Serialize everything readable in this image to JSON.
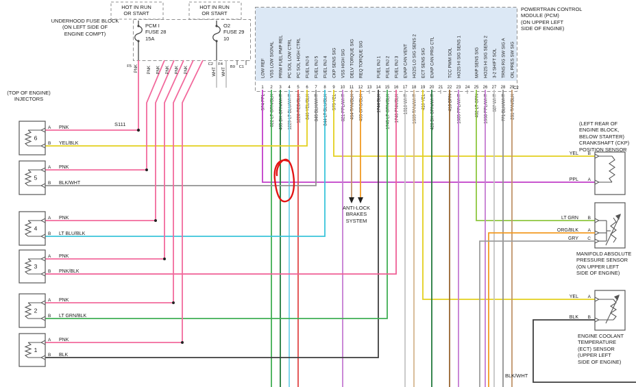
{
  "pcm": {
    "title": "POWERTRAIN CONTROL\nMODULE (PCM)\n(ON UPPER LEFT\nSIDE OF ENGINE)",
    "connector": "C2",
    "pins": [
      {
        "num": "1",
        "label": "LOW REF",
        "wire": "574 PPL",
        "color": "ppl"
      },
      {
        "num": "2",
        "label": "VSS LOW SIGNAL",
        "wire": "822 LT GRN/BLK",
        "color": "lt_grn_blk"
      },
      {
        "num": "3",
        "label": "PRIM FUEL PMP REL",
        "wire": "465 DK GRN/WHT",
        "color": "dk_grn_wht"
      },
      {
        "num": "4",
        "label": "PC SOL LOW CTRL",
        "wire": "1229 LT BLU/WHT",
        "color": "lt_blu_wht"
      },
      {
        "num": "5",
        "label": "PC SOL HIGH CTRL",
        "wire": "1228 RED/BLK",
        "color": "red_blk"
      },
      {
        "num": "6",
        "label": "FUEL INJ 6",
        "wire": "846 YEL/BLK",
        "color": "yel"
      },
      {
        "num": "7",
        "label": "FUEL INJ 5",
        "wire": "845 BLK/WHT",
        "color": "blk_wht"
      },
      {
        "num": "8",
        "label": "FUEL INJ 4",
        "wire": "844 LT BLU/BLK",
        "color": "lt_blu_blk"
      },
      {
        "num": "9",
        "label": "CKP SENS SIG",
        "wire": "573 YEL",
        "color": "yel"
      },
      {
        "num": "10",
        "label": "VSS HIGH SIG",
        "wire": "821 PPL/WHT",
        "color": "ppl_wht"
      },
      {
        "num": "11",
        "label": "DELV TORQUE SIG",
        "wire": "464 TAN/BLK",
        "color": "tan_blk"
      },
      {
        "num": "12",
        "label": "REQ TORQUE SIG",
        "wire": "463 ORG/BLK",
        "color": "org_blk"
      },
      {
        "num": "13",
        "label": "",
        "wire": "",
        "color": null
      },
      {
        "num": "14",
        "label": "FUEL INJ 1",
        "wire": "1744 BLK",
        "color": "blk"
      },
      {
        "num": "15",
        "label": "FUEL INJ 2",
        "wire": "1745 LT GRN/BLK",
        "color": "lt_grn_blk"
      },
      {
        "num": "16",
        "label": "FUEL INJ 3",
        "wire": "1746 PNK/BLK",
        "color": "pnk_blk"
      },
      {
        "num": "17",
        "label": "EVAP CAN VENT",
        "wire": "1310 WHT",
        "color": "wht"
      },
      {
        "num": "18",
        "label": "HO2S LO SIG SENS 2",
        "wire": "1669 TAN/WHT",
        "color": "tan_wht"
      },
      {
        "num": "19",
        "label": "ECT SENS SIG",
        "wire": "410 YEL",
        "color": "yel"
      },
      {
        "num": "20",
        "label": "EVAP CAN PRG CTL",
        "wire": "428 DK GRN/WHT",
        "color": "dk_grn_wht"
      },
      {
        "num": "21",
        "label": "",
        "wire": "",
        "color": null
      },
      {
        "num": "22",
        "label": "TCC PWM SOL",
        "wire": "418 BRN",
        "color": "brn"
      },
      {
        "num": "23",
        "label": "HO2S HI SIG SENS 1",
        "wire": "1685 PPL/WHT",
        "color": "ppl_wht"
      },
      {
        "num": "24",
        "label": "",
        "wire": "",
        "color": null
      },
      {
        "num": "25",
        "label": "MAP SENS SIG",
        "wire": "432 LT GRN",
        "color": "lt_grn"
      },
      {
        "num": "26",
        "label": "HO2S HI SIG SENS 2",
        "wire": "1668 PPL/WHT",
        "color": "ppl_wht"
      },
      {
        "num": "27",
        "label": "3-2 SHIFT SOL",
        "wire": "687 WHT",
        "color": "wht"
      },
      {
        "num": "28",
        "label": "TRNS RG SW SIG A",
        "wire": "771 BLK/WHT",
        "color": "blk_wht"
      },
      {
        "num": "29",
        "label": "OIL PRES SW SIG",
        "wire": "231 TAN/BLK",
        "color": "tan_blk"
      }
    ]
  },
  "fuse_block": {
    "label": "UNDERHOOD FUSE BLOCK\n(ON LEFT SIDE OF\nENGINE COMPT)",
    "hot_left": "HOT IN RUN\nOR START",
    "hot_right": "HOT IN RUN\nOR START",
    "fuse28_label": "PCM I\nFUSE 28\n15A",
    "fuse29_label": "O2\nFUSE 29\n10",
    "output_labels": [
      "F5",
      "C2",
      "F4",
      "B9",
      "C1"
    ],
    "feed_wire_color": "PNK",
    "o2_wire_color": "WHT"
  },
  "injectors": {
    "header": "(TOP OF ENGINE)\nINJECTORS",
    "terminal_a": "A",
    "terminal_b": "B",
    "items": [
      {
        "num": "6",
        "wire_a": "PNK",
        "wire_b": "YEL/BLK",
        "color_b": "yel"
      },
      {
        "num": "5",
        "wire_a": "PNK",
        "wire_b": "BLK/WHT",
        "color_b": "blk_wht"
      },
      {
        "num": "4",
        "wire_a": "PNK",
        "wire_b": "LT BLU/BLK",
        "color_b": "lt_blu_blk"
      },
      {
        "num": "3",
        "wire_a": "PNK",
        "wire_b": "PNK/BLK",
        "color_b": "pnk_blk"
      },
      {
        "num": "2",
        "wire_a": "PNK",
        "wire_b": "LT GRN/BLK",
        "color_b": "lt_grn_blk"
      },
      {
        "num": "1",
        "wire_a": "PNK",
        "wire_b": "BLK",
        "color_b": "blk"
      }
    ]
  },
  "sensors": {
    "ckp": {
      "title": "(LEFT REAR OF\nENGINE BLOCK,\nBELOW STARTER)\nCRANKSHAFT (CKP)\nPOSITION SENSOR",
      "terminals": [
        {
          "letter": "B",
          "wire": "YEL",
          "color": "yel"
        },
        {
          "letter": "A",
          "wire": "PPL",
          "color": "ppl"
        }
      ]
    },
    "map": {
      "title": "MANIFOLD ABSOLUTE\nPRESSURE SENSOR\n(ON UPPER LEFT\nSIDE OF ENGINE)",
      "terminals": [
        {
          "letter": "B",
          "wire": "LT GRN",
          "color": "lt_grn"
        },
        {
          "letter": "A",
          "wire": "ORG/BLK",
          "color": "org_blk"
        },
        {
          "letter": "C",
          "wire": "GRY",
          "color": "gry"
        }
      ]
    },
    "ect": {
      "title": "ENGINE COOLANT\nTEMPERATURE\n(ECT) SENSOR\n(UPPER LEFT\nSIDE OF ENGINE)",
      "terminals": [
        {
          "letter": "A",
          "wire": "YEL",
          "color": "yel"
        },
        {
          "letter": "B",
          "wire": "BLK",
          "color": "blk"
        }
      ]
    }
  },
  "abs_label": "ANTI-LOCK\nBRAKES\nSYSTEM",
  "splice_label": "S111",
  "bottom_right_wire_label": "BLK/WHT",
  "colors": {
    "pnk": "#f2699c",
    "ppl": "#c03cc8",
    "ppl_wht": "#c47ad2",
    "yel": "#e3cf1d",
    "blk": "#3c3c3c",
    "blk_wht": "#909090",
    "lt_blu_blk": "#38c4da",
    "lt_blu_wht": "#74d2ea",
    "lt_grn_blk": "#3fae53",
    "dk_grn_wht": "#20783a",
    "red_blk": "#e04545",
    "pnk_blk": "#ef5e95",
    "tan_blk": "#c09468",
    "org_blk": "#f29a21",
    "lt_grn": "#8dc63f",
    "tan_wht": "#d5b68f",
    "wht": "#c4c4c4",
    "brn": "#97642f",
    "gry": "#9c9c9c",
    "annotation": "#e31515",
    "pcm_fill": "#dce8f5",
    "dash": "#8e8e8e",
    "symbol": "#555555"
  }
}
